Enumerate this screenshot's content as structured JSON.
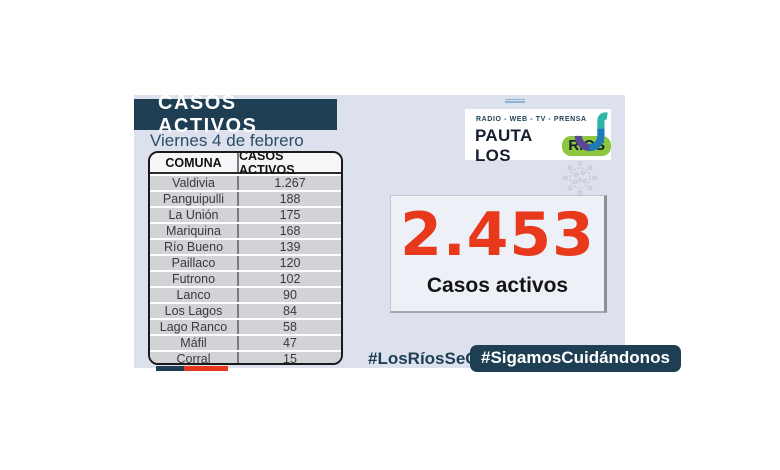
{
  "header": {
    "title": "CASOS ACTIVOS",
    "date": "Viernes 4 de febrero"
  },
  "table": {
    "columns": {
      "comuna": "COMUNA",
      "casos": "CASOS ACTIVOS"
    },
    "rows": [
      {
        "comuna": "Valdivia",
        "casos": "1.267"
      },
      {
        "comuna": "Panguipulli",
        "casos": "188"
      },
      {
        "comuna": "La Unión",
        "casos": "175"
      },
      {
        "comuna": "Mariquina",
        "casos": "168"
      },
      {
        "comuna": "Río Bueno",
        "casos": "139"
      },
      {
        "comuna": "Paillaco",
        "casos": "120"
      },
      {
        "comuna": "Futrono",
        "casos": "102"
      },
      {
        "comuna": "Lanco",
        "casos": "90"
      },
      {
        "comuna": "Los Lagos",
        "casos": "84"
      },
      {
        "comuna": "Lago Ranco",
        "casos": "58"
      },
      {
        "comuna": "Máfil",
        "casos": "47"
      },
      {
        "comuna": "Corral",
        "casos": "15"
      }
    ]
  },
  "summary": {
    "total": "2.453",
    "label": "Casos activos"
  },
  "hashtags": {
    "left": "#LosRíosSeCuida",
    "right": "#SigamosCuidándonos"
  },
  "logo": {
    "tagline": "RADIO - WEB - TV - PRENSA",
    "name_left": "PAUTA LOS",
    "name_right": "RIOS"
  },
  "colors": {
    "navy": "#1d3e53",
    "red": "#e8391d",
    "card_background": "#dde1ee",
    "row_gray": "#d2d3d6",
    "logo_green": "#8dc63f"
  },
  "chart_data": {
    "type": "table",
    "title": "CASOS ACTIVOS",
    "subtitle": "Viernes 4 de febrero",
    "columns": [
      "COMUNA",
      "CASOS ACTIVOS"
    ],
    "categories": [
      "Valdivia",
      "Panguipulli",
      "La Unión",
      "Mariquina",
      "Río Bueno",
      "Paillaco",
      "Futrono",
      "Lanco",
      "Los Lagos",
      "Lago Ranco",
      "Máfil",
      "Corral"
    ],
    "values": [
      1267,
      188,
      175,
      168,
      139,
      120,
      102,
      90,
      84,
      58,
      47,
      15
    ],
    "total": 2453,
    "total_label": "Casos activos"
  }
}
